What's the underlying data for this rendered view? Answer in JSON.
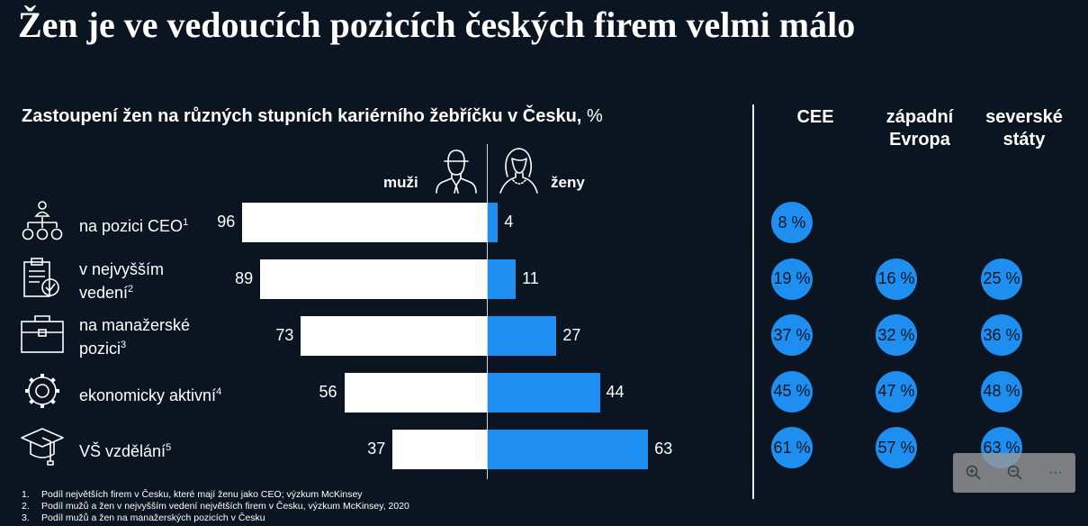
{
  "title": "Žen je ve vedoucích pozicích českých firem velmi málo",
  "subtitle": "Zastoupení žen na různých stupních kariérního žebříčku v Česku,",
  "subtitle_unit": "%",
  "regions": {
    "cee": "CEE",
    "west_line1": "západní",
    "west_line2": "Evropa",
    "nordic_line1": "severské",
    "nordic_line2": "státy"
  },
  "labels": {
    "men": "muži",
    "women": "ženy"
  },
  "rows": [
    {
      "line1": "na pozici CEO",
      "line2": "",
      "sup": "1",
      "icon": "org-chart-icon"
    },
    {
      "line1": "v nejvyšším",
      "line2": "vedení",
      "sup": "2",
      "icon": "clipboard-check-icon"
    },
    {
      "line1": "na manažerské",
      "line2": "pozici",
      "sup": "3",
      "icon": "briefcase-icon"
    },
    {
      "line1": "ekonomicky aktivní",
      "line2": "",
      "sup": "4",
      "icon": "gear-icon"
    },
    {
      "line1": "VŠ vzdělání",
      "line2": "",
      "sup": "5",
      "icon": "graduation-cap-icon"
    }
  ],
  "chart_data": {
    "type": "bar",
    "title": "Zastoupení žen na různých stupních kariérního žebříčku v Česku, %",
    "categories": [
      "na pozici CEO",
      "v nejvyšším vedení",
      "na manažerské pozici",
      "ekonomicky aktivní",
      "VŠ vzdělání"
    ],
    "series": [
      {
        "name": "muži",
        "values": [
          96,
          89,
          73,
          56,
          37
        ],
        "color": "#ffffff"
      },
      {
        "name": "ženy",
        "values": [
          4,
          11,
          27,
          44,
          63
        ],
        "color": "#1e8ff0"
      }
    ],
    "comparison": {
      "columns": [
        "CEE",
        "západní Evropa",
        "severské státy"
      ],
      "values": [
        [
          "8 %",
          "",
          ""
        ],
        [
          "19 %",
          "16 %",
          "25 %"
        ],
        [
          "37 %",
          "32 %",
          "36 %"
        ],
        [
          "45 %",
          "47 %",
          "48 %"
        ],
        [
          "61 %",
          "57 %",
          "63 %"
        ]
      ]
    },
    "xlim": [
      0,
      100
    ]
  },
  "footnotes": [
    {
      "num": "1.",
      "text": "Podíl  největších firem v Česku, které mají ženu jako CEO; výzkum McKinsey"
    },
    {
      "num": "2.",
      "text": "Podíl mužů a žen v nejvyšším vedení největších firem v Česku, výzkum McKinsey, 2020"
    },
    {
      "num": "3.",
      "text": "Podíl mužů a žen na manažerských pozicích v Česku"
    }
  ],
  "colors": {
    "background": "#0b1521",
    "women": "#1e8ff0",
    "men": "#ffffff"
  },
  "zoom_toolbar": {
    "more_label": "···"
  }
}
